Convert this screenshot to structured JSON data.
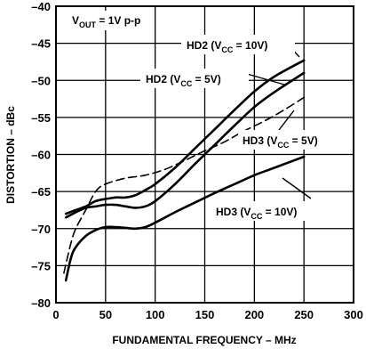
{
  "chart_data": {
    "type": "line",
    "xlabel": "FUNDAMENTAL FREQUENCY – MHz",
    "ylabel": "DISTORTION – dBc",
    "xlim": [
      0,
      300
    ],
    "ylim": [
      -80,
      -40
    ],
    "x_ticks": [
      "0",
      "50",
      "100",
      "150",
      "200",
      "250",
      "300"
    ],
    "y_ticks": [
      "–40",
      "–45",
      "–50",
      "–55",
      "–60",
      "–65",
      "–70",
      "–75",
      "–80"
    ],
    "grid": true,
    "condition_label": {
      "main": "V",
      "sub": "OUT",
      "tail": " = 1V p-p"
    },
    "series": [
      {
        "name": "HD2 (VCC = 10V)",
        "label": {
          "pre": "HD2 (V",
          "sub": "CC",
          "post": " = 10V)"
        },
        "style": "solid",
        "x": [
          10,
          20,
          30,
          40,
          50,
          60,
          70,
          80,
          90,
          100,
          120,
          140,
          160,
          180,
          200,
          220,
          250
        ],
        "y": [
          -68,
          -67.5,
          -67,
          -66.3,
          -66,
          -65.8,
          -65.8,
          -65.5,
          -64.8,
          -64,
          -61.8,
          -59.2,
          -56.6,
          -54,
          -51.5,
          -49.5,
          -47.3
        ]
      },
      {
        "name": "HD2 (VCC = 5V)",
        "label": {
          "pre": "HD2 (V",
          "sub": "CC",
          "post": " = 5V)"
        },
        "style": "solid",
        "x": [
          10,
          20,
          30,
          40,
          50,
          60,
          70,
          80,
          90,
          100,
          120,
          140,
          160,
          180,
          200,
          220,
          250
        ],
        "y": [
          -68.5,
          -67.8,
          -67.2,
          -67,
          -66.8,
          -66.8,
          -67,
          -67.2,
          -67,
          -66.3,
          -64,
          -61.3,
          -58.7,
          -56.1,
          -53.6,
          -51.6,
          -49
        ]
      },
      {
        "name": "HD3 (VCC = 5V)",
        "label": {
          "pre": "HD3 (V",
          "sub": "CC",
          "post": " = 5V)"
        },
        "style": "dashed",
        "x": [
          8,
          15,
          20,
          30,
          40,
          50,
          70,
          90,
          110,
          130,
          150,
          170,
          190,
          210,
          230,
          250
        ],
        "y": [
          -76,
          -72,
          -70,
          -67.5,
          -65,
          -64,
          -63.2,
          -62.8,
          -62,
          -60.8,
          -59.5,
          -58.3,
          -56.8,
          -55.5,
          -54,
          -52.3
        ]
      },
      {
        "name": "HD3 (VCC = 10V)",
        "label": {
          "pre": "HD3 (V",
          "sub": "CC",
          "post": " = 10V)"
        },
        "style": "solid",
        "x": [
          10,
          15,
          20,
          30,
          40,
          50,
          60,
          70,
          80,
          90,
          100,
          120,
          140,
          160,
          180,
          200,
          220,
          250
        ],
        "y": [
          -77,
          -74,
          -72.5,
          -71,
          -70.2,
          -69.8,
          -69.8,
          -69.9,
          -70,
          -69.8,
          -69.2,
          -67.8,
          -66.5,
          -65.2,
          -64,
          -62.8,
          -61.8,
          -60.3
        ]
      }
    ]
  }
}
